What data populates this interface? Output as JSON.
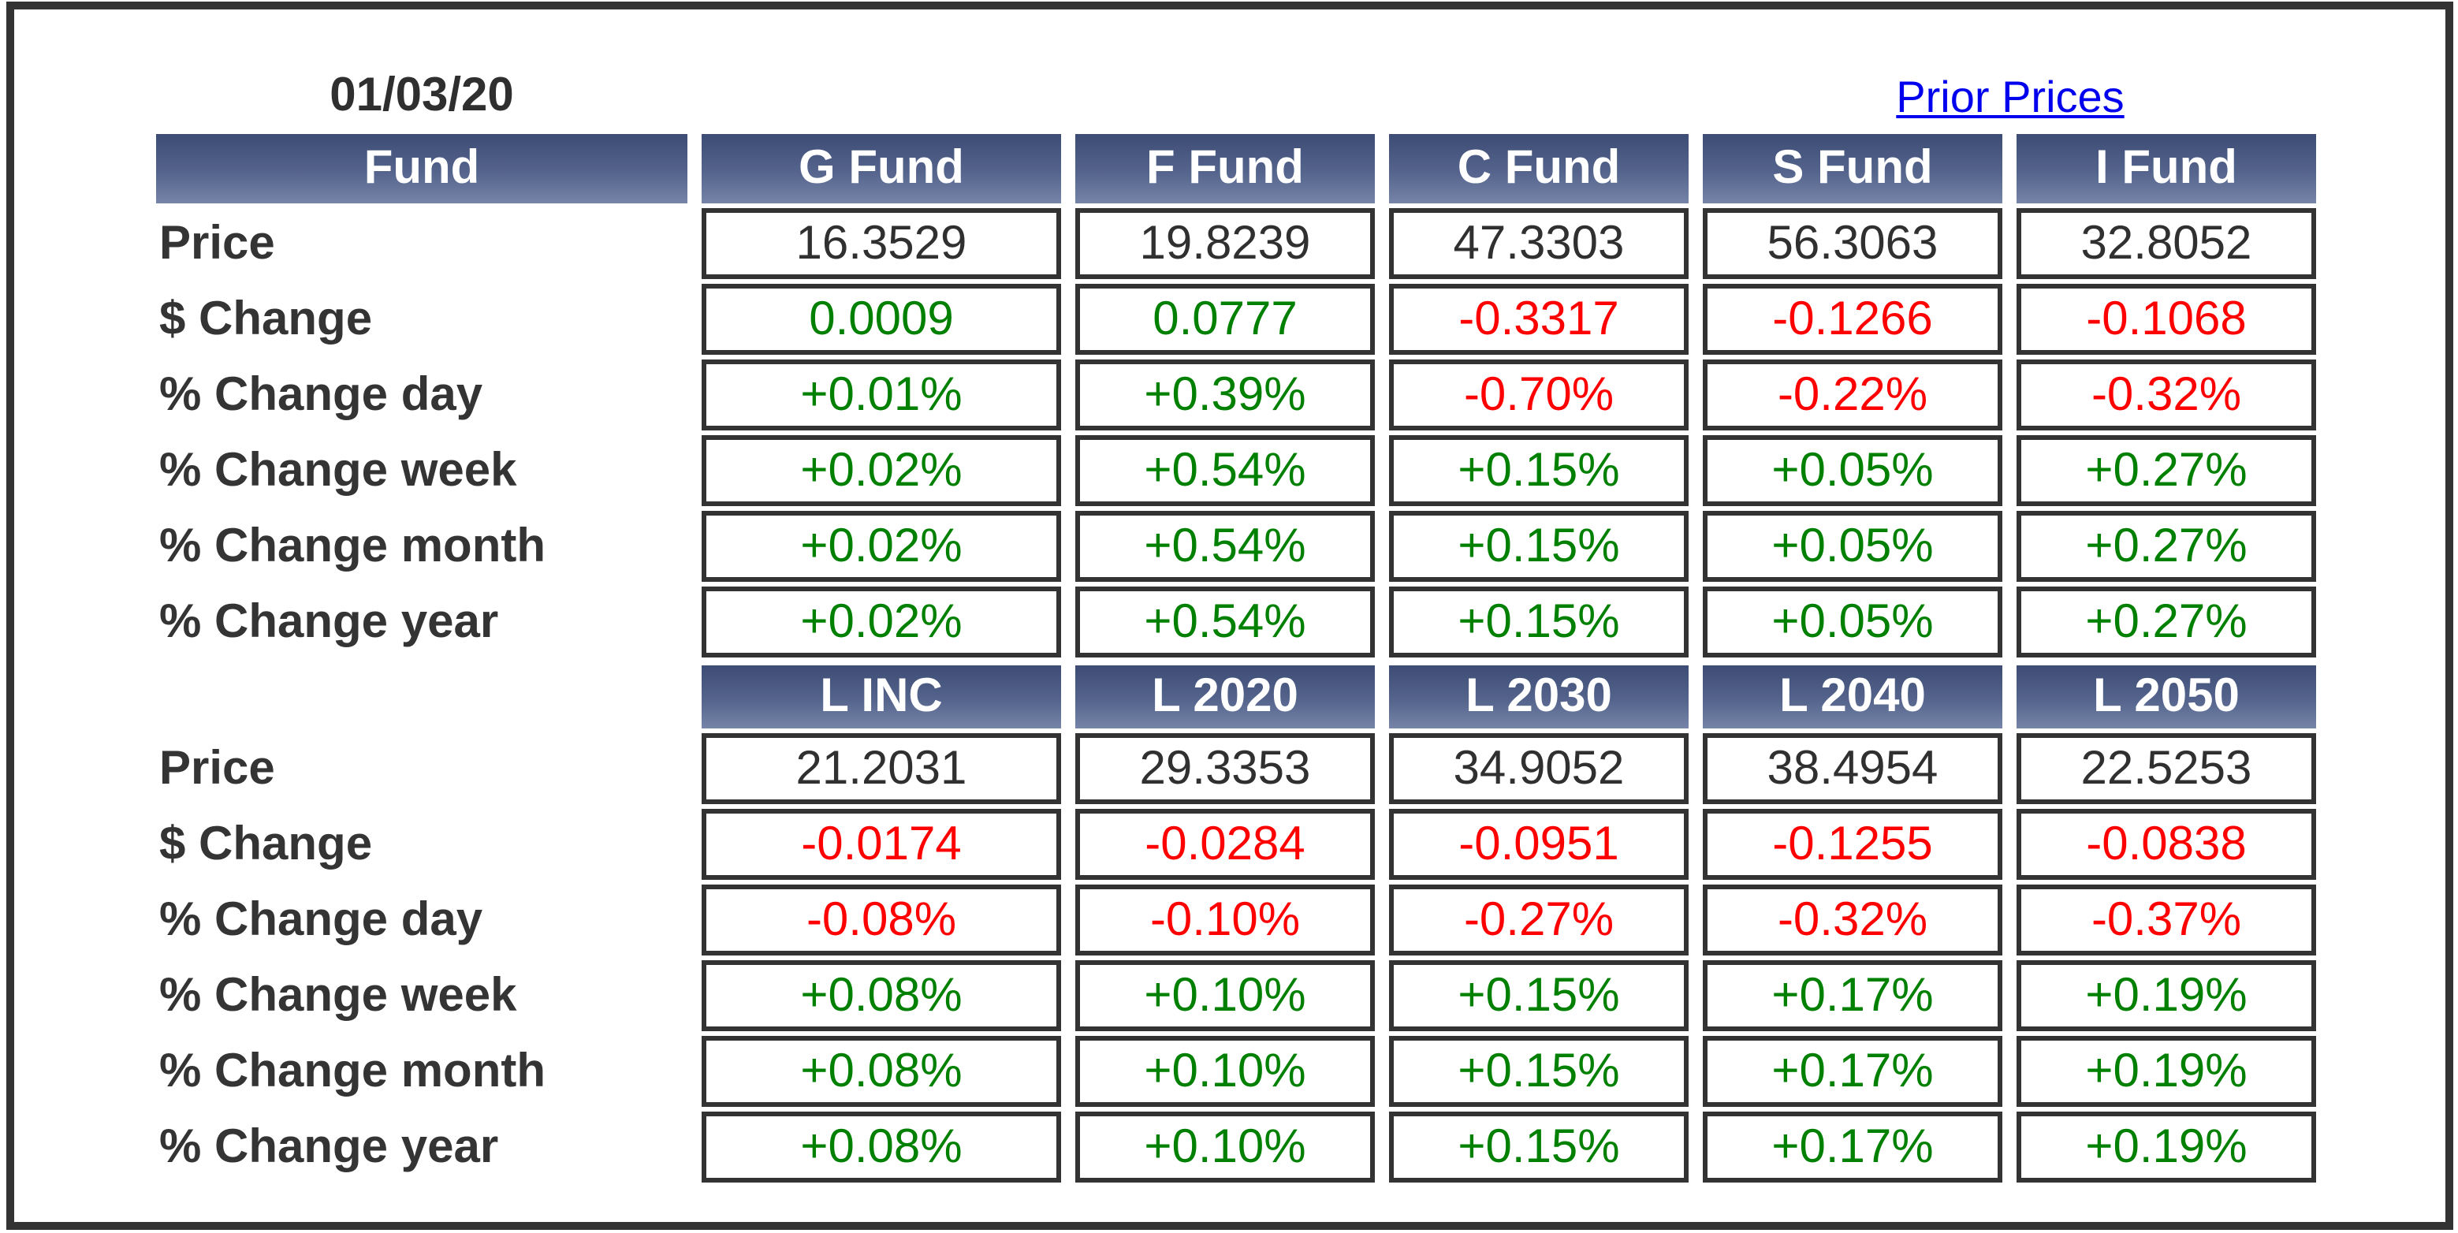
{
  "header": {
    "date": "01/03/20",
    "prior_prices_link": "Prior Prices"
  },
  "fund_header_label": "Fund",
  "row_labels": {
    "price": "Price",
    "dollar_change": "$ Change",
    "pct_day": "% Change day",
    "pct_week": "% Change week",
    "pct_month": "% Change month",
    "pct_year": "% Change year"
  },
  "sections": [
    {
      "columns": [
        "G Fund",
        "F Fund",
        "C Fund",
        "S Fund",
        "I Fund"
      ],
      "price": [
        "16.3529",
        "19.8239",
        "47.3303",
        "56.3063",
        "32.8052"
      ],
      "dollar_change": [
        "0.0009",
        "0.0777",
        "-0.3317",
        "-0.1266",
        "-0.1068"
      ],
      "pct_day": [
        "+0.01%",
        "+0.39%",
        "-0.70%",
        "-0.22%",
        "-0.32%"
      ],
      "pct_week": [
        "+0.02%",
        "+0.54%",
        "+0.15%",
        "+0.05%",
        "+0.27%"
      ],
      "pct_month": [
        "+0.02%",
        "+0.54%",
        "+0.15%",
        "+0.05%",
        "+0.27%"
      ],
      "pct_year": [
        "+0.02%",
        "+0.54%",
        "+0.15%",
        "+0.05%",
        "+0.27%"
      ]
    },
    {
      "columns": [
        "L INC",
        "L 2020",
        "L 2030",
        "L 2040",
        "L 2050"
      ],
      "price": [
        "21.2031",
        "29.3353",
        "34.9052",
        "38.4954",
        "22.5253"
      ],
      "dollar_change": [
        "-0.0174",
        "-0.0284",
        "-0.0951",
        "-0.1255",
        "-0.0838"
      ],
      "pct_day": [
        "-0.08%",
        "-0.10%",
        "-0.27%",
        "-0.32%",
        "-0.37%"
      ],
      "pct_week": [
        "+0.08%",
        "+0.10%",
        "+0.15%",
        "+0.17%",
        "+0.19%"
      ],
      "pct_month": [
        "+0.08%",
        "+0.10%",
        "+0.15%",
        "+0.17%",
        "+0.19%"
      ],
      "pct_year": [
        "+0.08%",
        "+0.10%",
        "+0.15%",
        "+0.17%",
        "+0.19%"
      ]
    }
  ],
  "colors": {
    "positive": "#008000",
    "negative": "#ff0000",
    "neutral_text": "#303030",
    "link": "#0000ee",
    "header_top": "#3d4c74",
    "header_bottom": "#7584a7",
    "border": "#333333"
  }
}
